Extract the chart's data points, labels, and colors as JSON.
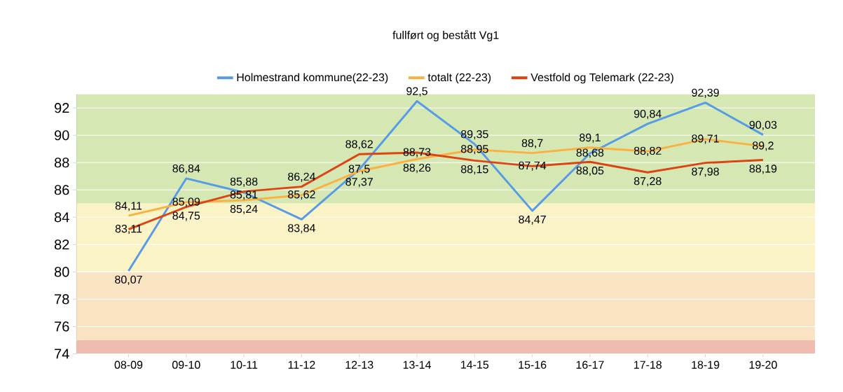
{
  "chart_data": {
    "type": "line",
    "title": "fullført og bestått Vg1",
    "categories": [
      "08-09",
      "09-10",
      "10-11",
      "11-12",
      "12-13",
      "13-14",
      "14-15",
      "15-16",
      "16-17",
      "17-18",
      "18-19",
      "19-20"
    ],
    "series": [
      {
        "name": "Holmestrand kommune(22-23)",
        "color": "#559be6",
        "values": [
          80.07,
          86.84,
          85.81,
          83.84,
          87.5,
          92.5,
          89.35,
          84.47,
          88.68,
          90.84,
          92.39,
          90.03
        ],
        "value_labels": [
          "80,07",
          "86,84",
          "85,81",
          "83,84",
          "87,5",
          "92,5",
          "89,35",
          "84,47",
          "88,68",
          "90,84",
          "92,39",
          "90,03"
        ]
      },
      {
        "name": "totalt (22-23)",
        "color": "#fbb040",
        "values": [
          84.11,
          85.09,
          85.24,
          85.62,
          87.37,
          88.26,
          88.95,
          88.7,
          89.1,
          88.82,
          89.71,
          89.2
        ],
        "value_labels": [
          "84,11",
          "85,09",
          "85,24",
          "85,62",
          "87,37",
          "88,26",
          "88,95",
          "88,7",
          "89,1",
          "88,82",
          "89,71",
          "89,2"
        ]
      },
      {
        "name": "Vestfold og Telemark (22-23)",
        "color": "#dd4411",
        "values": [
          83.11,
          84.75,
          85.88,
          86.24,
          88.62,
          88.73,
          88.15,
          87.74,
          88.05,
          87.28,
          87.98,
          88.19
        ],
        "value_labels": [
          "83,11",
          "84,75",
          "85,88",
          "86,24",
          "88,62",
          "88,73",
          "88,15",
          "87,74",
          "88,05",
          "87,28",
          "87,98",
          "88,19"
        ]
      }
    ],
    "ylim": [
      74,
      93
    ],
    "yticks": [
      74,
      76,
      78,
      80,
      82,
      84,
      86,
      88,
      90,
      92
    ],
    "grid": "y",
    "legend": "top",
    "marker": "none",
    "line_style": "solid",
    "bands": [
      {
        "axis": "y",
        "from": 85,
        "to": 93,
        "color": "#d5e8b4"
      },
      {
        "axis": "y",
        "from": 80,
        "to": 85,
        "color": "#faf3c6"
      },
      {
        "axis": "y",
        "from": 75,
        "to": 80,
        "color": "#f9e3c2"
      },
      {
        "axis": "y",
        "from": 74,
        "to": 75,
        "color": "#efbcb0"
      }
    ]
  }
}
